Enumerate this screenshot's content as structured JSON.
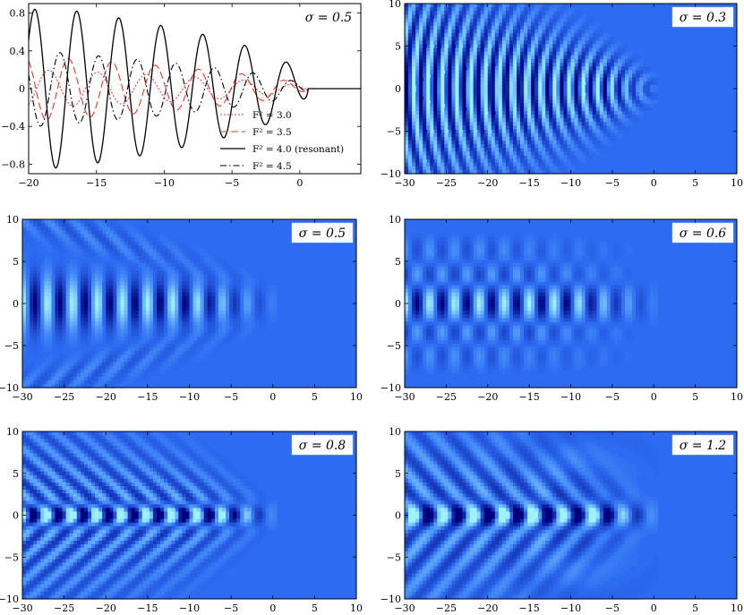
{
  "chart_data": [
    {
      "type": "line",
      "label": "σ = 0.5",
      "xlim": [
        -20,
        4.5
      ],
      "ylim": [
        -0.9,
        0.9
      ],
      "xticks": [
        -20,
        -15,
        -10,
        -5,
        0
      ],
      "yticks": [
        -0.8,
        -0.4,
        0,
        0.4,
        0.8
      ],
      "xtick_labels": [
        "−20",
        "−15",
        "−10",
        "−5",
        "0"
      ],
      "ytick_labels": [
        "−0.8",
        "−0.4",
        "0",
        "0.4",
        "0.8"
      ],
      "legend_position": "lower-right",
      "series": [
        {
          "name": "F² = 3.0",
          "style": "dotted",
          "color": "#e8342c",
          "amplitude": 0.2,
          "period": 3.6,
          "phase": 0.9
        },
        {
          "name": "F² = 3.5",
          "style": "dashed",
          "color": "#e8342c",
          "amplitude": 0.34,
          "period": 3.2,
          "phase": 2.1
        },
        {
          "name": "F² = 4.0 (resonant)",
          "style": "solid",
          "color": "#000000",
          "amplitude": 0.84,
          "period": 3.0,
          "phase": 0.0
        },
        {
          "name": "F² = 4.5",
          "style": "dashdot",
          "color": "#000000",
          "amplitude": 0.4,
          "period": 2.85,
          "phase": 1.3
        }
      ]
    },
    {
      "type": "heatmap",
      "label": "σ = 0.3",
      "xlim": [
        -30,
        10
      ],
      "ylim": [
        -10,
        10
      ],
      "xticks": [
        -30,
        -25,
        -20,
        -15,
        -10,
        -5,
        0,
        5,
        10
      ],
      "yticks": [
        -10,
        -5,
        0,
        5,
        10
      ],
      "pattern": "arcs",
      "sigma": 0.3
    },
    {
      "type": "heatmap",
      "label": "σ = 0.5",
      "xlim": [
        -30,
        10
      ],
      "ylim": [
        -10,
        10
      ],
      "xticks": [
        -30,
        -25,
        -20,
        -15,
        -10,
        -5,
        0,
        5,
        10
      ],
      "yticks": [
        -10,
        -5,
        0,
        5,
        10
      ],
      "pattern": "blobs",
      "sigma": 0.5
    },
    {
      "type": "heatmap",
      "label": "σ = 0.6",
      "xlim": [
        -30,
        10
      ],
      "ylim": [
        -10,
        10
      ],
      "xticks": [
        -30,
        -25,
        -20,
        -15,
        -10,
        -5,
        0,
        5,
        10
      ],
      "yticks": [
        -10,
        -5,
        0,
        5,
        10
      ],
      "pattern": "blobs-side",
      "sigma": 0.6
    },
    {
      "type": "heatmap",
      "label": "σ = 0.8",
      "xlim": [
        -30,
        10
      ],
      "ylim": [
        -10,
        10
      ],
      "xticks": [
        -30,
        -25,
        -20,
        -15,
        -10,
        -5,
        0,
        5,
        10
      ],
      "yticks": [
        -10,
        -5,
        0,
        5,
        10
      ],
      "pattern": "chevron",
      "sigma": 0.8
    },
    {
      "type": "heatmap",
      "label": "σ = 1.2",
      "xlim": [
        -30,
        10
      ],
      "ylim": [
        -10,
        10
      ],
      "xticks": [
        -30,
        -25,
        -20,
        -15,
        -10,
        -5,
        0,
        5,
        10
      ],
      "yticks": [
        -10,
        -5,
        0,
        5,
        10
      ],
      "pattern": "chevron-wide",
      "sigma": 1.2
    }
  ],
  "colors": {
    "background_field": "#2d6cf2",
    "crest": "#9ff2ff",
    "trough": "#00007a",
    "axis": "#000000"
  }
}
